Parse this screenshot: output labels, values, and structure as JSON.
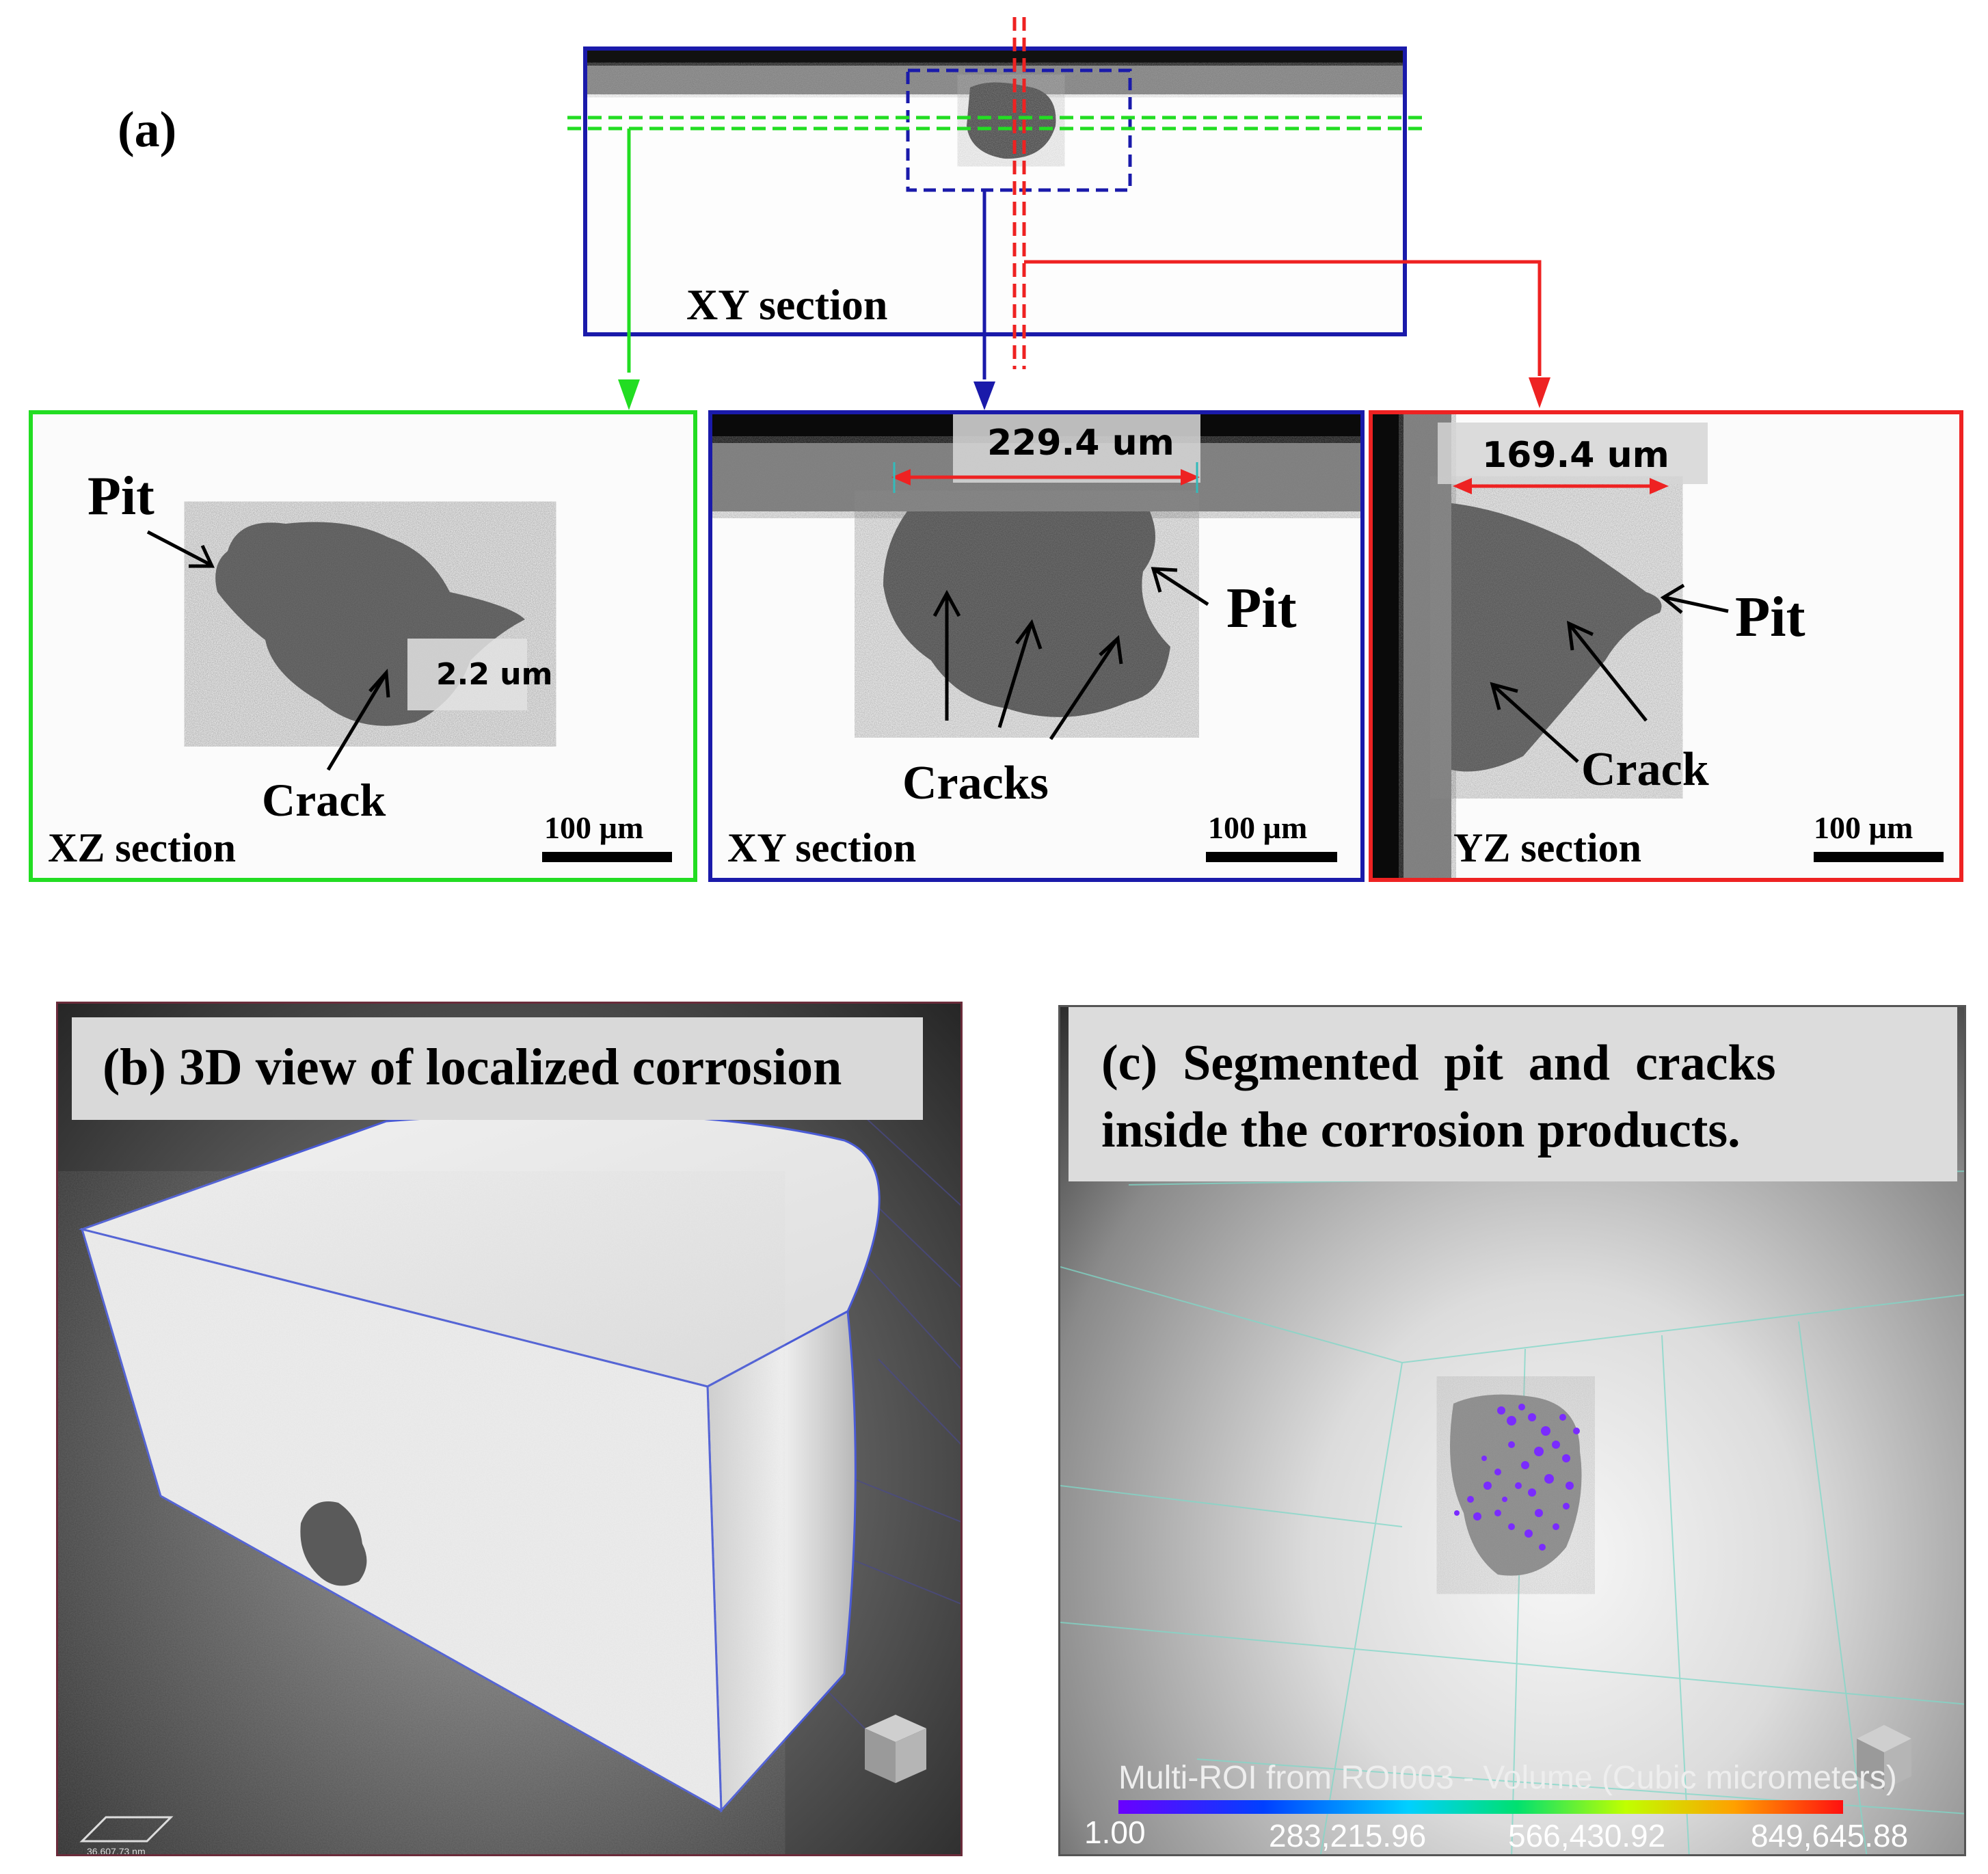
{
  "panel_a": {
    "label": "(a)",
    "top_section_label": "XY section",
    "xz": {
      "section_label": "XZ section",
      "pit_label": "Pit",
      "crack_label": "Crack",
      "measure": "2.2 um",
      "scale_bar": "100 µm",
      "border_color": "#22dd22"
    },
    "xy": {
      "section_label": "XY section",
      "pit_label": "Pit",
      "crack_label": "Cracks",
      "measure": "229.4 um",
      "scale_bar": "100 µm",
      "border_color": "#1a1aaa"
    },
    "yz": {
      "section_label": "YZ section",
      "pit_label": "Pit",
      "crack_label": "Crack",
      "measure": "169.4 um",
      "scale_bar": "100 µm",
      "border_color": "#ee2222"
    }
  },
  "panel_b": {
    "caption": "(b) 3D view of localized corrosion",
    "scale_readout": "36,607.73 nm"
  },
  "panel_c": {
    "caption_line1": "(c)  Segmented  pit  and  cracks",
    "caption_line2": "inside the corrosion products.",
    "colorbar_title": "Multi-ROI from ROI003 - Volume (Cubic micrometers)",
    "colorbar_ticks": [
      "1.00",
      "283,215.96",
      "566,430.92",
      "849,645.88"
    ]
  }
}
